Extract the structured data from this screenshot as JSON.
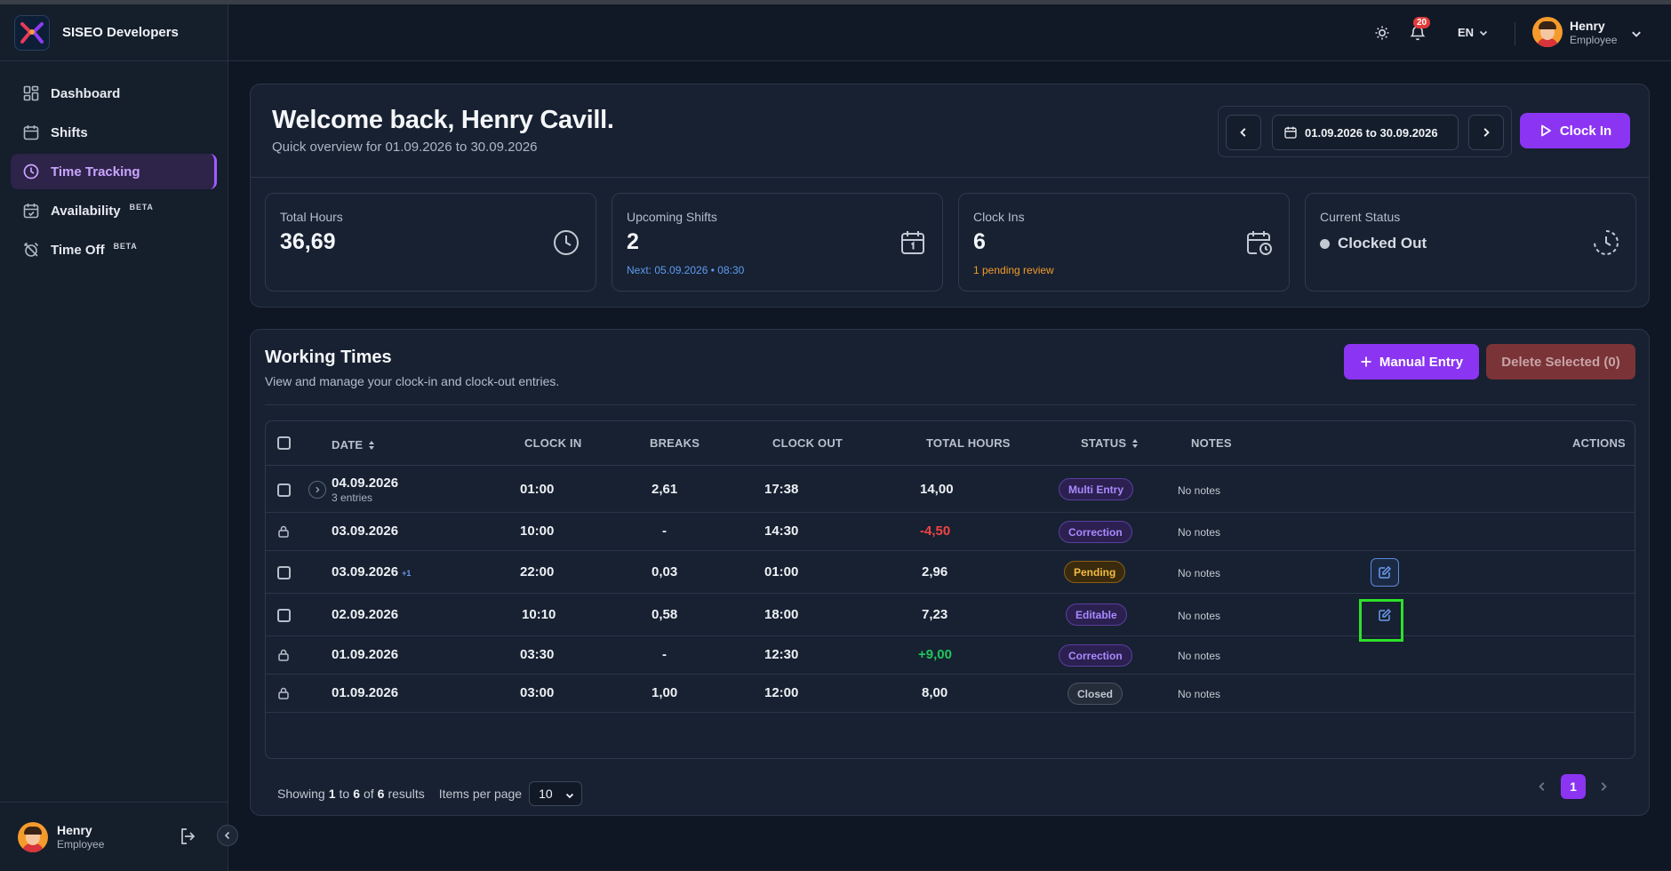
{
  "brand": {
    "name": "SISEO Developers"
  },
  "sidebar": {
    "items": [
      {
        "label": "Dashboard",
        "icon": "grid-icon",
        "active": false
      },
      {
        "label": "Shifts",
        "icon": "calendar-icon",
        "active": false
      },
      {
        "label": "Time Tracking",
        "icon": "clock-icon",
        "active": true
      },
      {
        "label": "Availability",
        "icon": "calendar-check-icon",
        "badge": "BETA"
      },
      {
        "label": "Time Off",
        "icon": "alarm-off-icon",
        "badge": "BETA"
      }
    ],
    "user": {
      "name": "Henry",
      "role": "Employee"
    }
  },
  "header": {
    "notifications_count": "20",
    "language": "EN",
    "user": {
      "name": "Henry",
      "role": "Employee"
    }
  },
  "welcome": {
    "title": "Welcome back, Henry Cavill.",
    "subtitle": "Quick overview for 01.09.2026 to 30.09.2026",
    "date_range": "01.09.2026 to 30.09.2026",
    "clock_in_label": "Clock In"
  },
  "stats": {
    "total_hours": {
      "label": "Total Hours",
      "value": "36,69"
    },
    "upcoming_shifts": {
      "label": "Upcoming Shifts",
      "value": "2",
      "note": "Next: 05.09.2026 • 08:30"
    },
    "clock_ins": {
      "label": "Clock Ins",
      "value": "6",
      "note": "1 pending review"
    },
    "current_status": {
      "label": "Current Status",
      "value": "Clocked Out"
    }
  },
  "working_times": {
    "title": "Working Times",
    "subtitle": "View and manage your clock-in and clock-out entries.",
    "manual_entry_label": "Manual Entry",
    "delete_label": "Delete Selected (0)",
    "columns": [
      "DATE",
      "CLOCK IN",
      "BREAKS",
      "CLOCK OUT",
      "TOTAL HOURS",
      "STATUS",
      "NOTES",
      "ACTIONS"
    ],
    "rows": [
      {
        "date": "04.09.2026",
        "sub": "3 entries",
        "clock_in": "01:00",
        "breaks": "2,61",
        "clock_out": "17:38",
        "total": "14,00",
        "status": "Multi Entry",
        "notes": "No notes"
      },
      {
        "date": "03.09.2026",
        "clock_in": "10:00",
        "breaks": "-",
        "clock_out": "14:30",
        "total": "-4,50",
        "status": "Correction",
        "notes": "No notes"
      },
      {
        "date": "03.09.2026",
        "extra": "+1",
        "clock_in": "22:00",
        "breaks": "0,03",
        "clock_out": "01:00",
        "total": "2,96",
        "status": "Pending",
        "notes": "No notes"
      },
      {
        "date": "02.09.2026",
        "clock_in": "10:10",
        "breaks": "0,58",
        "clock_out": "18:00",
        "total": "7,23",
        "status": "Editable",
        "notes": "No notes"
      },
      {
        "date": "01.09.2026",
        "clock_in": "03:30",
        "breaks": "-",
        "clock_out": "12:30",
        "total": "+9,00",
        "status": "Correction",
        "notes": "No notes"
      },
      {
        "date": "01.09.2026",
        "clock_in": "03:00",
        "breaks": "1,00",
        "clock_out": "12:00",
        "total": "8,00",
        "status": "Closed",
        "notes": "No notes"
      }
    ],
    "pagination": {
      "showing": "Showing",
      "from": "1",
      "to_word": "to",
      "to": "6",
      "of_word": "of",
      "total": "6",
      "results_word": "results",
      "items_per_page_label": "Items per page",
      "items_per_page": "10",
      "current_page": "1"
    }
  },
  "colors": {
    "accent": "#8b35f3",
    "negative": "#ef4444",
    "positive": "#22c55e",
    "highlight": "#2ee02b"
  }
}
